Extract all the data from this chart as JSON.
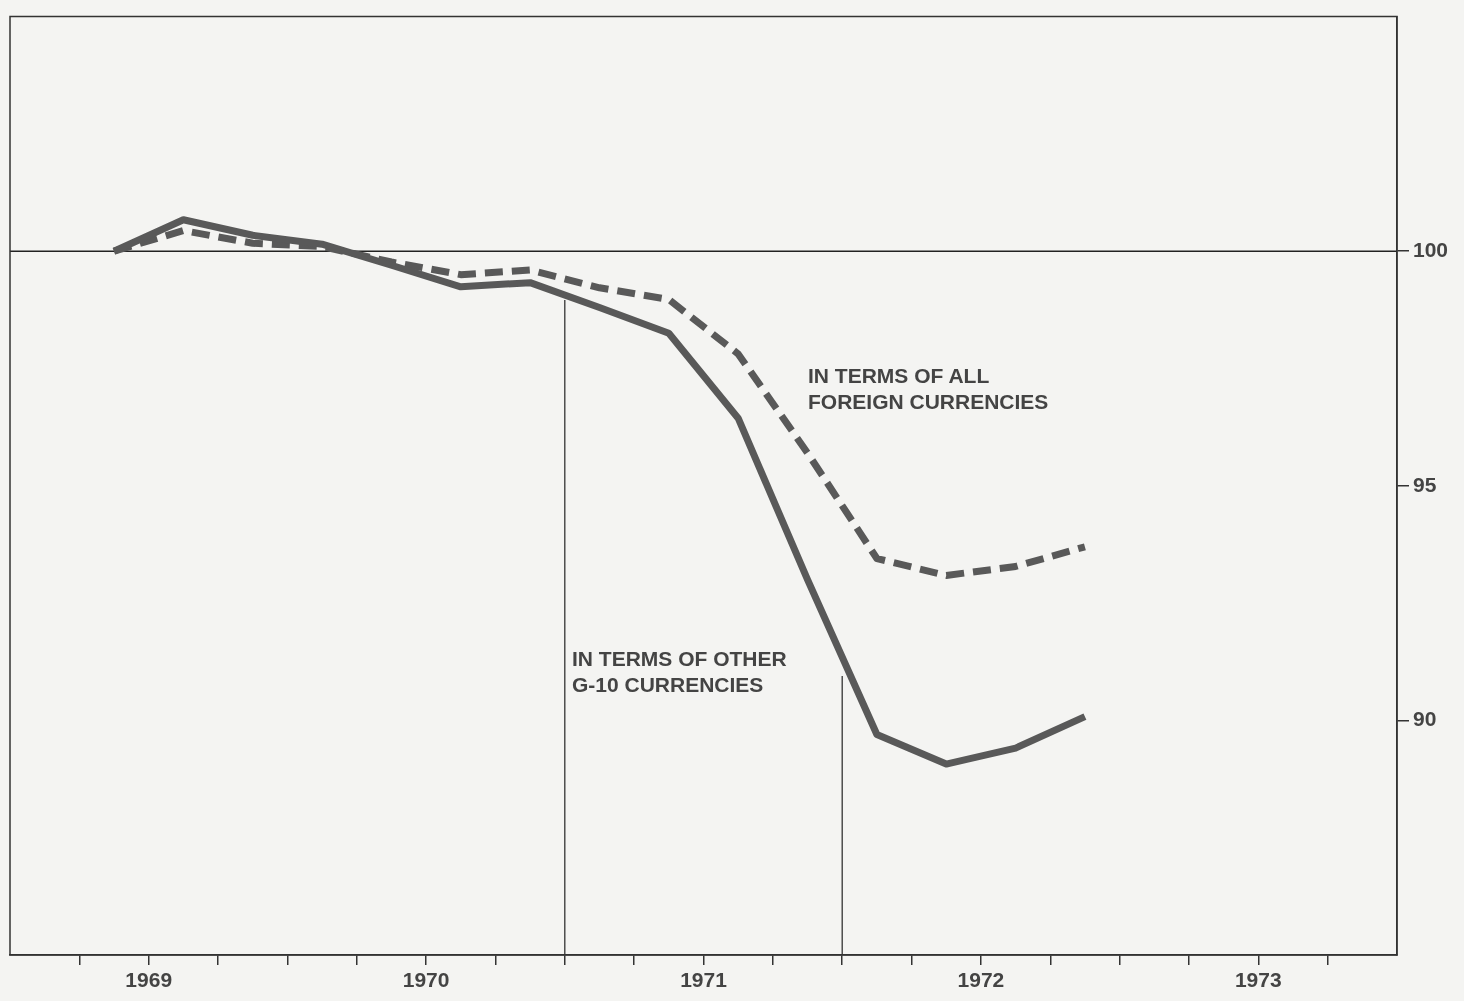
{
  "chart_data": {
    "type": "line",
    "x": [
      1969.375,
      1969.625,
      1969.875,
      1970.125,
      1970.375,
      1970.625,
      1970.875,
      1971.125,
      1971.375,
      1971.625,
      1971.875,
      1972.125,
      1972.375,
      1972.625,
      1972.875
    ],
    "series": [
      {
        "name": "IN TERMS OF OTHER G-10 CURRENCIES",
        "color": "#595959",
        "line_style": "solid",
        "values": [
          100.0,
          100.67,
          100.34,
          100.15,
          99.7,
          99.24,
          99.33,
          98.8,
          98.25,
          96.44,
          93.0,
          89.7,
          89.07,
          89.41,
          90.08
        ]
      },
      {
        "name": "IN TERMS OF ALL FOREIGN CURRENCIES",
        "color": "#595959",
        "line_style": "dashed",
        "values": [
          100.0,
          100.44,
          100.17,
          100.1,
          99.77,
          99.5,
          99.6,
          99.22,
          98.97,
          97.81,
          95.7,
          93.45,
          93.09,
          93.28,
          93.7
        ]
      }
    ],
    "xlim": [
      1969,
      1974
    ],
    "xticks": [
      {
        "value": 1969.25,
        "label": null
      },
      {
        "value": 1969.5,
        "label": "1969"
      },
      {
        "value": 1969.75,
        "label": null
      },
      {
        "value": 1970,
        "label": null
      },
      {
        "value": 1970.25,
        "label": null
      },
      {
        "value": 1970.5,
        "label": "1970"
      },
      {
        "value": 1970.75,
        "label": null
      },
      {
        "value": 1971,
        "label": null
      },
      {
        "value": 1971.25,
        "label": null
      },
      {
        "value": 1971.5,
        "label": "1971"
      },
      {
        "value": 1971.75,
        "label": null
      },
      {
        "value": 1972,
        "label": null
      },
      {
        "value": 1972.25,
        "label": null
      },
      {
        "value": 1972.5,
        "label": "1972"
      },
      {
        "value": 1972.75,
        "label": null
      },
      {
        "value": 1973,
        "label": null
      },
      {
        "value": 1973.25,
        "label": null
      },
      {
        "value": 1973.5,
        "label": "1973"
      },
      {
        "value": 1973.75,
        "label": null
      }
    ],
    "ylim": [
      85,
      105
    ],
    "yticks": [
      90,
      95,
      100
    ],
    "ref_lines": [
      {
        "axis": "y",
        "value": 100,
        "color": "#222222"
      },
      {
        "axis": "x",
        "value": 1971,
        "color": "#333333"
      },
      {
        "axis": "x",
        "value": 1972,
        "color": "#333333"
      }
    ],
    "marker": "none",
    "legend": false
  }
}
